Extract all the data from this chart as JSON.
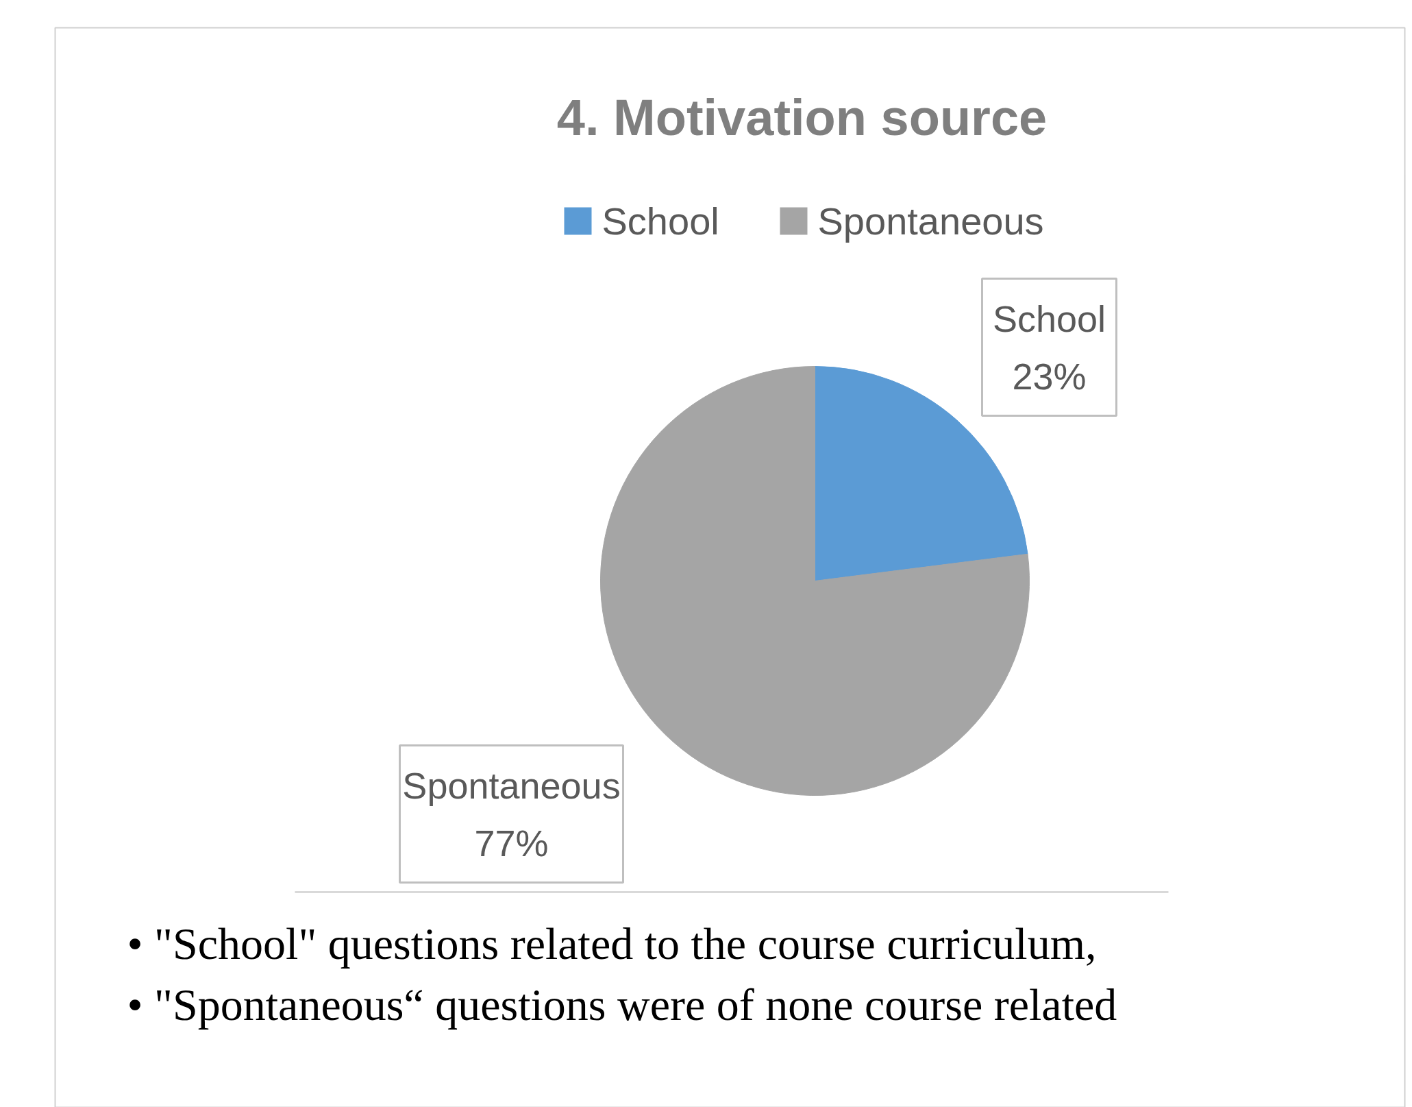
{
  "chart_data": {
    "type": "pie",
    "title": "4. Motivation source",
    "categories": [
      "School",
      "Spontaneous"
    ],
    "values": [
      23,
      77
    ],
    "colors": [
      "#5b9bd5",
      "#a5a5a5"
    ],
    "value_labels": [
      "23%",
      "77%"
    ],
    "legend": "top",
    "annotations": [
      "•   \"School\" questions related to the course curriculum,",
      "•   \"Spontaneous“ questions were of none course related"
    ]
  }
}
